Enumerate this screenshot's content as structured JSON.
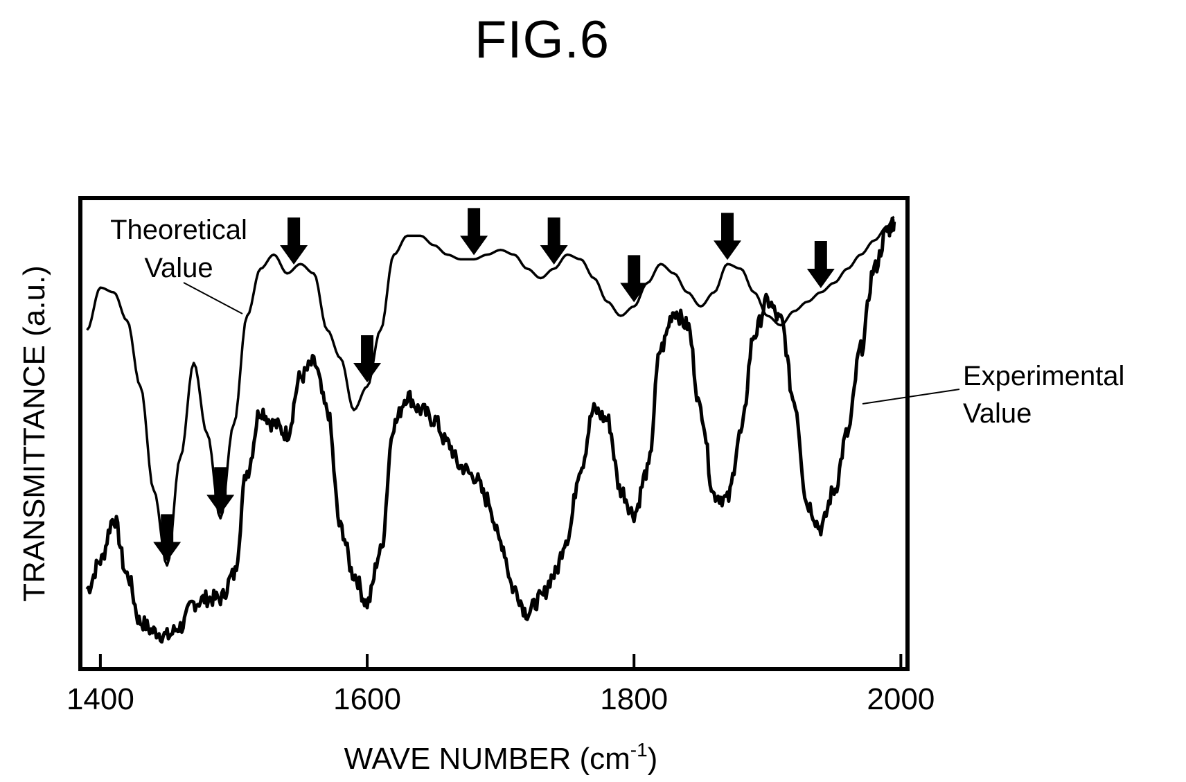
{
  "figure_title": "FIG.6",
  "chart_data": {
    "type": "line",
    "title": "FIG.6",
    "xlabel": "WAVE NUMBER (cm",
    "xlabel_sup": "-1",
    "xlabel_close": ")",
    "ylabel": "TRANSMITTANCE (a.u.)",
    "xlim": [
      1385,
      2005
    ],
    "ylim": [
      0,
      1
    ],
    "x_ticks": [
      1400,
      1600,
      1800,
      2000
    ],
    "grid": false,
    "legend": "none",
    "series": [
      {
        "name": "Theoretical Value",
        "x": [
          1390,
          1400,
          1410,
          1420,
          1430,
          1440,
          1450,
          1460,
          1470,
          1480,
          1490,
          1500,
          1510,
          1520,
          1530,
          1540,
          1550,
          1560,
          1570,
          1580,
          1590,
          1600,
          1610,
          1620,
          1630,
          1640,
          1650,
          1660,
          1670,
          1680,
          1690,
          1700,
          1710,
          1720,
          1730,
          1740,
          1750,
          1760,
          1770,
          1780,
          1790,
          1800,
          1810,
          1820,
          1830,
          1840,
          1850,
          1860,
          1870,
          1880,
          1890,
          1900,
          1910,
          1920,
          1930,
          1940,
          1950,
          1960,
          1970,
          1980,
          1990,
          1995
        ],
        "y": [
          0.72,
          0.81,
          0.8,
          0.74,
          0.6,
          0.38,
          0.22,
          0.45,
          0.65,
          0.5,
          0.32,
          0.52,
          0.75,
          0.85,
          0.88,
          0.84,
          0.86,
          0.84,
          0.72,
          0.66,
          0.55,
          0.6,
          0.72,
          0.88,
          0.92,
          0.92,
          0.9,
          0.88,
          0.87,
          0.87,
          0.88,
          0.89,
          0.88,
          0.85,
          0.83,
          0.85,
          0.88,
          0.87,
          0.83,
          0.78,
          0.75,
          0.77,
          0.82,
          0.86,
          0.84,
          0.8,
          0.77,
          0.8,
          0.86,
          0.85,
          0.8,
          0.75,
          0.73,
          0.76,
          0.78,
          0.8,
          0.82,
          0.85,
          0.88,
          0.91,
          0.94,
          0.96
        ]
      },
      {
        "name": "Experimental Value",
        "x": [
          1390,
          1400,
          1410,
          1420,
          1430,
          1440,
          1450,
          1460,
          1470,
          1480,
          1490,
          1500,
          1510,
          1520,
          1530,
          1540,
          1550,
          1560,
          1570,
          1580,
          1590,
          1600,
          1610,
          1620,
          1630,
          1640,
          1650,
          1660,
          1670,
          1680,
          1690,
          1700,
          1710,
          1720,
          1730,
          1740,
          1750,
          1760,
          1770,
          1780,
          1790,
          1800,
          1810,
          1820,
          1830,
          1840,
          1850,
          1860,
          1870,
          1880,
          1890,
          1900,
          1910,
          1920,
          1930,
          1940,
          1950,
          1960,
          1970,
          1980,
          1990,
          1995
        ],
        "y": [
          0.17,
          0.23,
          0.32,
          0.2,
          0.1,
          0.08,
          0.07,
          0.09,
          0.14,
          0.15,
          0.15,
          0.2,
          0.42,
          0.55,
          0.52,
          0.5,
          0.62,
          0.65,
          0.55,
          0.3,
          0.2,
          0.14,
          0.25,
          0.52,
          0.58,
          0.55,
          0.53,
          0.48,
          0.43,
          0.41,
          0.36,
          0.27,
          0.17,
          0.12,
          0.15,
          0.2,
          0.28,
          0.43,
          0.55,
          0.53,
          0.38,
          0.33,
          0.42,
          0.68,
          0.76,
          0.73,
          0.55,
          0.37,
          0.36,
          0.5,
          0.71,
          0.78,
          0.74,
          0.57,
          0.35,
          0.3,
          0.38,
          0.5,
          0.68,
          0.85,
          0.93,
          0.95
        ]
      }
    ],
    "annotations": [
      {
        "text_lines": [
          "Theoretical",
          "Value"
        ],
        "target": "Theoretical Value"
      },
      {
        "text_lines": [
          "Experimental",
          "Value"
        ],
        "target": "Experimental Value"
      }
    ],
    "arrow_markers_x": [
      1450,
      1490,
      1545,
      1600,
      1680,
      1740,
      1800,
      1870,
      1940
    ]
  }
}
